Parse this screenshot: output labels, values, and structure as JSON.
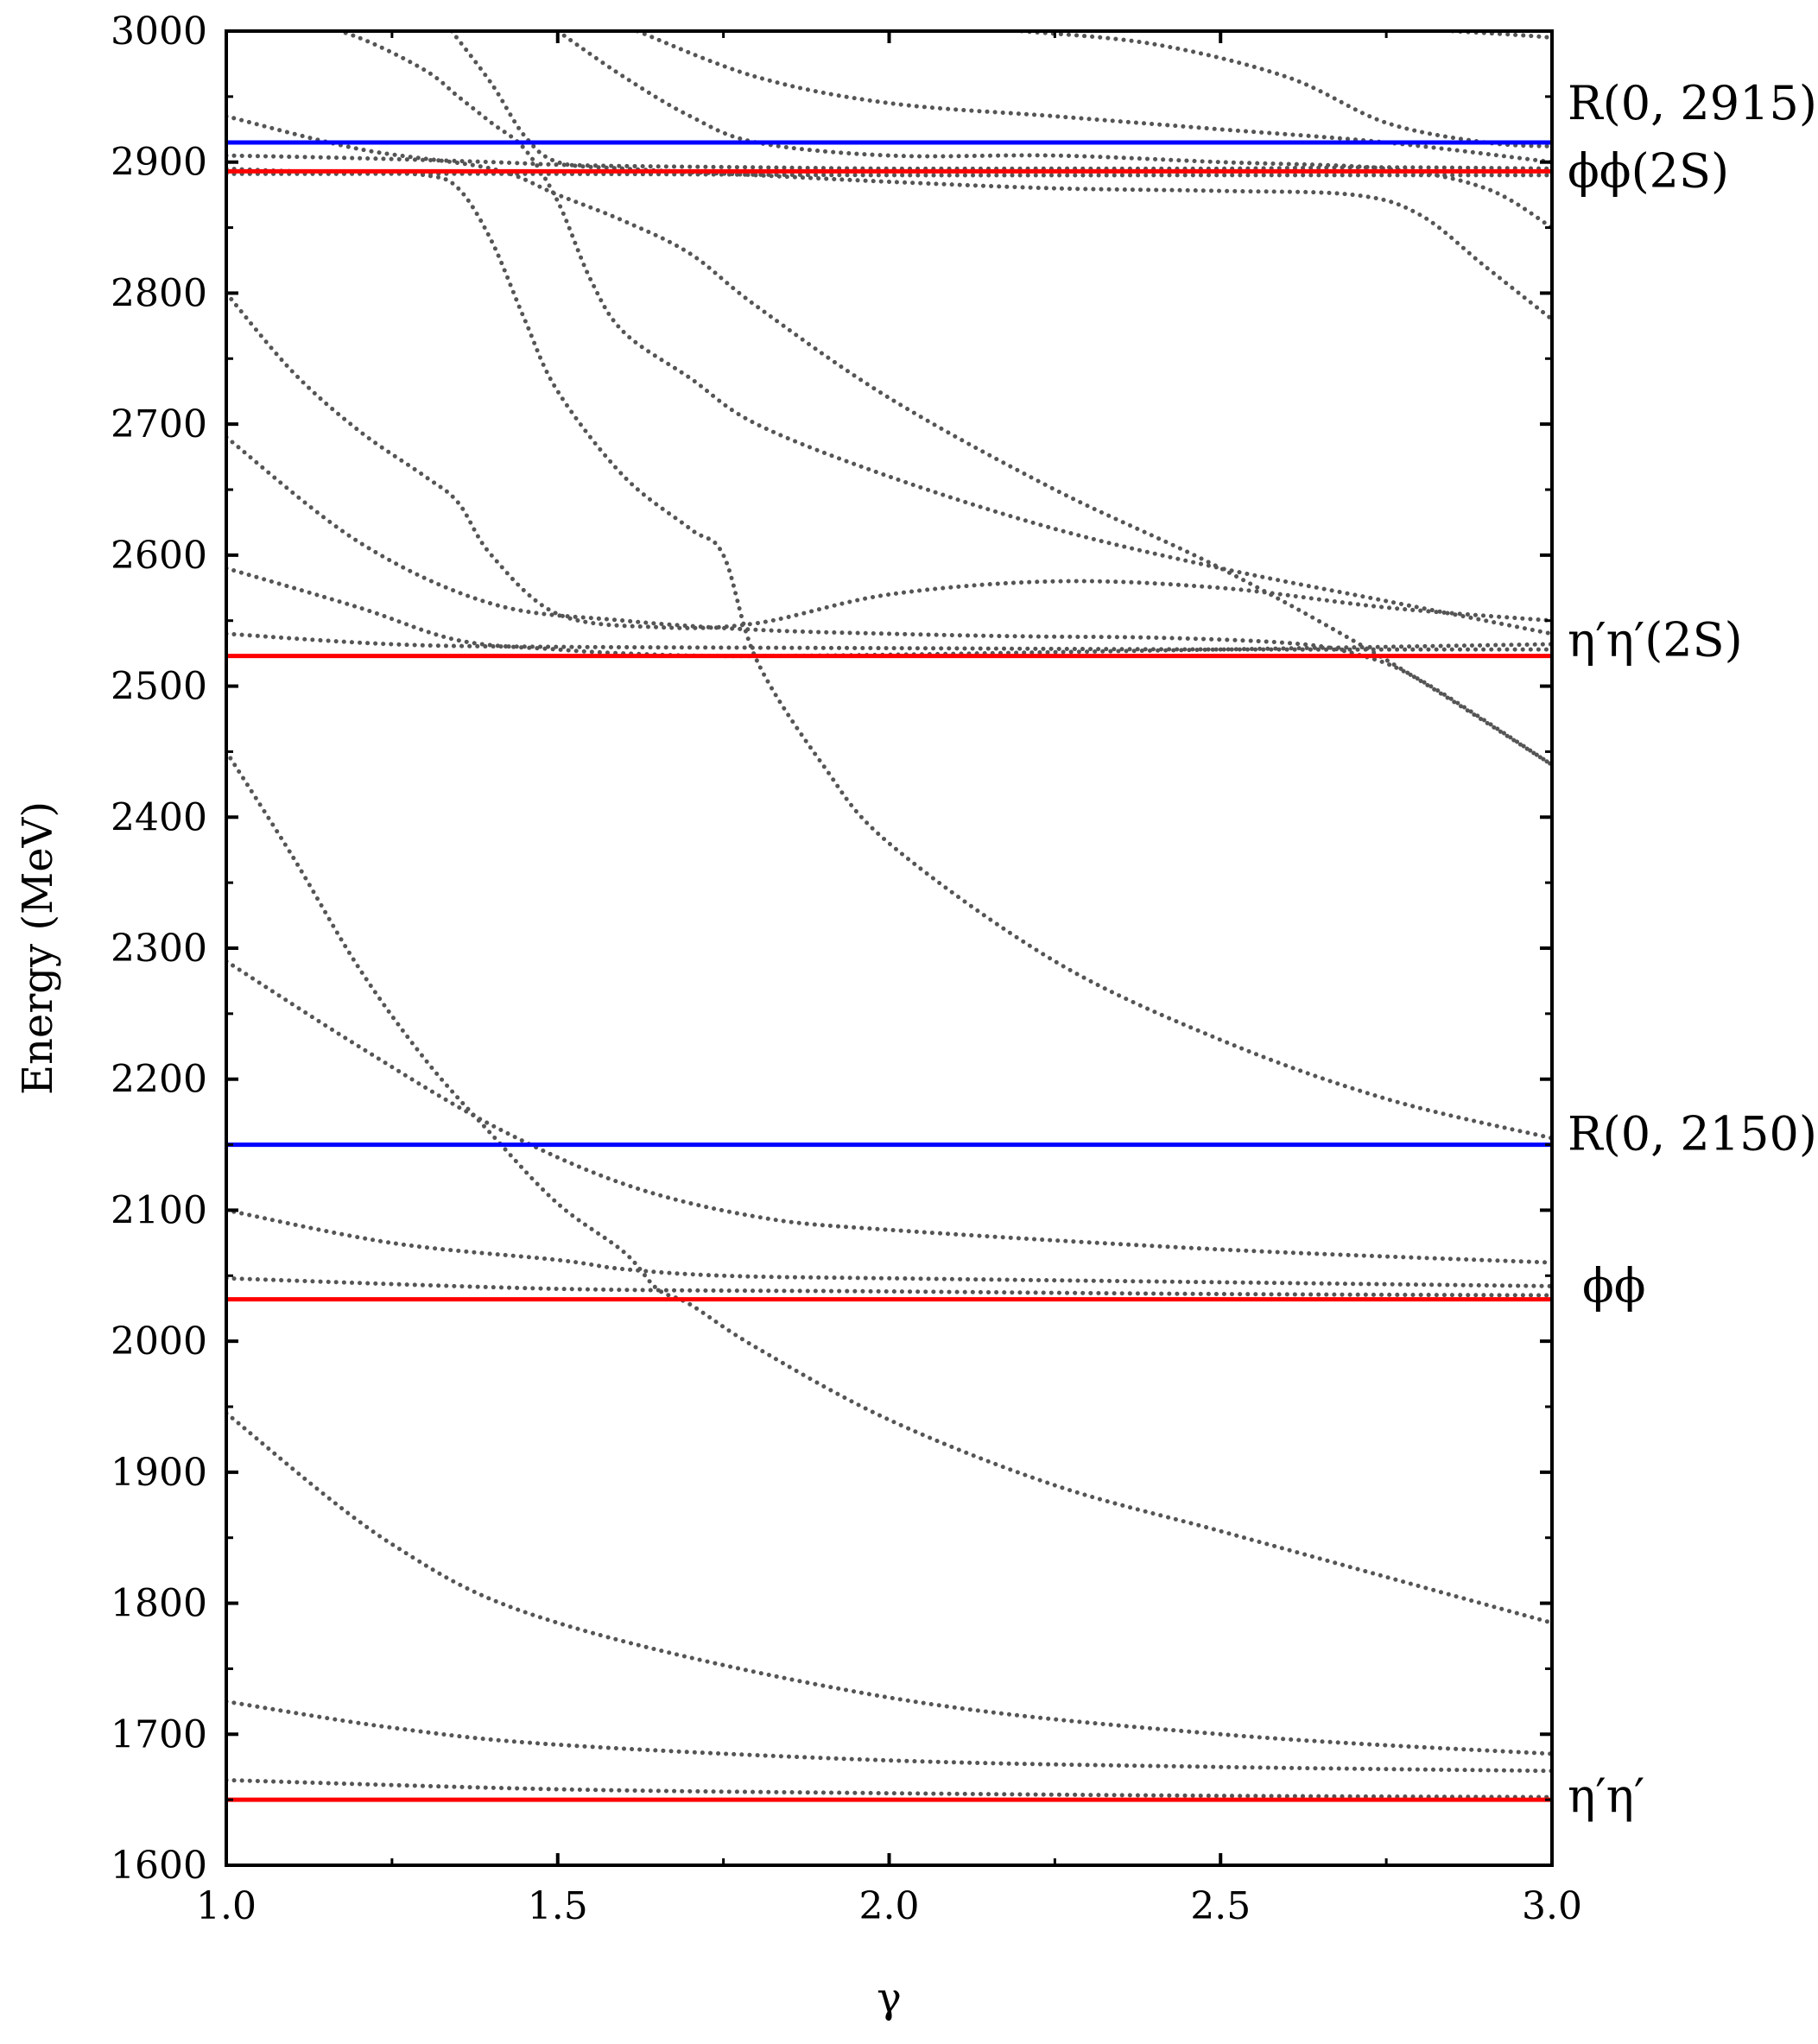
{
  "chart_data": {
    "type": "line",
    "title": "",
    "xlabel": "γ",
    "ylabel": "Energy (MeV)",
    "xlim": [
      1.0,
      3.0
    ],
    "ylim": [
      1600,
      3000
    ],
    "x_ticks": [
      1.0,
      1.5,
      2.0,
      2.5,
      3.0
    ],
    "x_tick_labels": [
      "1.0",
      "1.5",
      "2.0",
      "2.5",
      "3.0"
    ],
    "y_ticks": [
      1600,
      1700,
      1800,
      1900,
      2000,
      2100,
      2200,
      2300,
      2400,
      2500,
      2600,
      2700,
      2800,
      2900,
      3000
    ],
    "y_tick_labels": [
      "1600",
      "1700",
      "1800",
      "1900",
      "2000",
      "2100",
      "2200",
      "2300",
      "2400",
      "2500",
      "2600",
      "2700",
      "2800",
      "2900",
      "3000"
    ],
    "grid": false,
    "thresholds": [
      {
        "label": "η′η′",
        "value": 1650,
        "color": "#ff0000"
      },
      {
        "label": "ϕϕ",
        "value": 2032,
        "color": "#ff0000"
      },
      {
        "label": "R(0, 2150)",
        "value": 2150,
        "color": "#0000ff"
      },
      {
        "label": "η′η′(2S)",
        "value": 2523,
        "color": "#ff0000"
      },
      {
        "label": "ϕϕ(2S)",
        "value": 2893,
        "color": "#ff0000"
      },
      {
        "label": "R(0, 2915)",
        "value": 2915,
        "color": "#0000ff"
      }
    ],
    "curve_color": "#555555",
    "curves": [
      {
        "x": [
          1.0,
          1.5,
          2.0,
          2.5,
          3.0
        ],
        "y": [
          1665,
          1658,
          1655,
          1653,
          1652
        ]
      },
      {
        "x": [
          1.0,
          1.25,
          1.5,
          2.0,
          2.5,
          3.0
        ],
        "y": [
          1725,
          1705,
          1692,
          1680,
          1675,
          1672
        ]
      },
      {
        "x": [
          1.0,
          1.25,
          1.5,
          2.0,
          2.5,
          3.0
        ],
        "y": [
          1945,
          1845,
          1785,
          1728,
          1700,
          1685
        ]
      },
      {
        "x": [
          1.0,
          1.5,
          2.0,
          2.5,
          3.0
        ],
        "y": [
          2048,
          2040,
          2038,
          2036,
          2035
        ]
      },
      {
        "x": [
          1.0,
          1.25,
          1.5,
          1.6,
          1.75,
          2.0,
          2.5,
          3.0
        ],
        "y": [
          2100,
          2075,
          2062,
          2055,
          2050,
          2048,
          2045,
          2042
        ]
      },
      {
        "x": [
          1.0,
          1.2,
          1.4,
          1.6,
          1.8,
          2.0,
          2.5,
          3.0
        ],
        "y": [
          2290,
          2225,
          2165,
          2120,
          2095,
          2085,
          2070,
          2060
        ]
      },
      {
        "x": [
          1.0,
          1.1,
          1.2,
          1.3,
          1.4,
          1.5,
          1.6,
          1.65,
          1.7,
          1.8,
          2.0,
          2.25,
          2.5,
          2.75,
          3.0
        ],
        "y": [
          2450,
          2370,
          2285,
          2215,
          2158,
          2105,
          2068,
          2040,
          2028,
          1995,
          1940,
          1890,
          1855,
          1820,
          1785
        ]
      },
      {
        "x": [
          1.0,
          1.25,
          1.5,
          2.0,
          2.5,
          3.0
        ],
        "y": [
          2540,
          2532,
          2530,
          2529,
          2528,
          2528
        ]
      },
      {
        "x": [
          1.0,
          1.2,
          1.35,
          1.5,
          1.6,
          1.75,
          2.0,
          2.5,
          3.0
        ],
        "y": [
          2590,
          2560,
          2535,
          2528,
          2525,
          2523,
          2524,
          2528,
          2532
        ]
      },
      {
        "x": [
          1.0,
          1.2,
          1.4,
          1.6,
          1.8,
          2.0,
          2.2,
          2.4,
          2.6,
          2.7,
          2.8,
          3.0
        ],
        "y": [
          2690,
          2610,
          2563,
          2550,
          2543,
          2540,
          2538,
          2537,
          2533,
          2525,
          2505,
          2440
        ]
      },
      {
        "x": [
          1.0,
          1.1,
          1.2,
          1.3,
          1.35,
          1.4,
          1.5,
          1.65,
          1.8,
          2.0,
          2.25,
          2.5,
          2.75,
          3.0
        ],
        "y": [
          2800,
          2740,
          2695,
          2660,
          2640,
          2600,
          2555,
          2545,
          2548,
          2570,
          2580,
          2575,
          2560,
          2550
        ]
      },
      {
        "x": [
          1.0,
          1.1,
          1.2,
          1.3,
          1.35,
          1.4,
          1.45,
          1.5,
          1.6,
          1.7,
          1.75,
          1.8,
          1.9,
          2.0,
          2.25,
          2.5,
          2.75,
          3.0
        ],
        "y": [
          2895,
          2893,
          2892,
          2890,
          2880,
          2840,
          2780,
          2725,
          2660,
          2620,
          2600,
          2520,
          2440,
          2380,
          2290,
          2230,
          2185,
          2155
        ]
      },
      {
        "x": [
          1.0,
          1.2,
          1.4,
          1.5,
          1.6,
          1.7,
          1.8,
          2.0,
          2.25,
          2.5,
          2.75,
          3.0
        ],
        "y": [
          2935,
          2910,
          2895,
          2875,
          2855,
          2830,
          2790,
          2720,
          2650,
          2590,
          2520,
          2440
        ]
      },
      {
        "x": [
          1.0,
          1.2,
          1.4,
          1.5,
          1.6,
          1.8,
          2.0,
          2.25,
          2.5,
          2.75,
          3.0
        ],
        "y": [
          2905,
          2903,
          2900,
          2898,
          2897,
          2896,
          2895,
          2895,
          2895,
          2896,
          2895
        ]
      },
      {
        "x": [
          1.0,
          1.5,
          2.0,
          2.5,
          3.0
        ],
        "y": [
          2891,
          2891,
          2890,
          2890,
          2890
        ]
      },
      {
        "x": [
          1.1,
          1.2,
          1.3,
          1.35,
          1.4,
          1.45,
          1.5,
          1.55,
          1.6,
          1.7,
          1.8,
          2.0,
          2.25,
          2.5,
          2.75,
          3.0
        ],
        "y": [
          3010,
          2995,
          2970,
          2950,
          2930,
          2910,
          2870,
          2810,
          2770,
          2735,
          2700,
          2660,
          2620,
          2590,
          2565,
          2540
        ]
      },
      {
        "x": [
          1.34,
          1.4,
          1.45,
          1.5,
          1.6,
          1.8,
          2.0,
          2.25,
          2.5,
          2.7,
          2.8,
          2.9,
          3.0
        ],
        "y": [
          3000,
          2960,
          2920,
          2900,
          2895,
          2890,
          2885,
          2880,
          2878,
          2875,
          2860,
          2820,
          2780
        ]
      },
      {
        "x": [
          1.5,
          1.6,
          1.7,
          1.8,
          2.0,
          2.25,
          2.5,
          2.75,
          2.9,
          3.0
        ],
        "y": [
          3000,
          2965,
          2935,
          2915,
          2905,
          2905,
          2900,
          2895,
          2880,
          2850
        ]
      },
      {
        "x": [
          1.62,
          1.8,
          2.0,
          2.25,
          2.5,
          2.75,
          3.0
        ],
        "y": [
          3000,
          2965,
          2945,
          2935,
          2925,
          2915,
          2900
        ]
      },
      {
        "x": [
          2.2,
          2.4,
          2.6,
          2.75,
          2.9,
          3.0
        ],
        "y": [
          3000,
          2990,
          2965,
          2930,
          2915,
          2912
        ]
      },
      {
        "x": [
          2.85,
          2.95,
          3.0
        ],
        "y": [
          3000,
          2997,
          2995
        ]
      }
    ]
  }
}
